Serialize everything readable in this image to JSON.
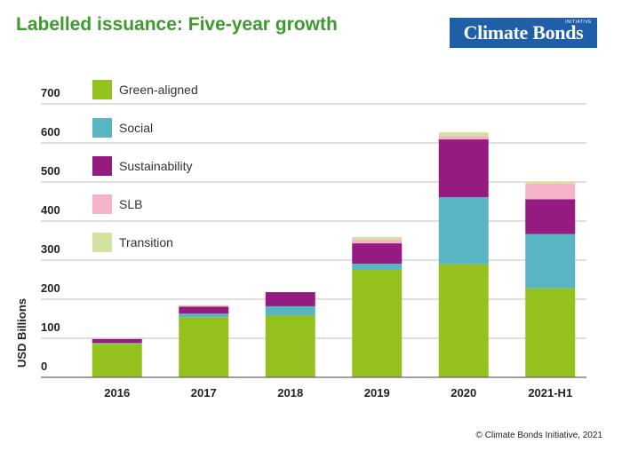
{
  "header": {
    "title": "Labelled issuance: Five-year growth",
    "logo_text": "Climate Bonds",
    "logo_subtext": "INITIATIVE"
  },
  "footer": {
    "copyright": "© Climate Bonds Initiative, 2021"
  },
  "colors": {
    "title": "#3d9a2e",
    "logo_bg": "#1f5fa8",
    "gridline": "#bfbfbf"
  },
  "chart_data": {
    "type": "bar",
    "stacked": true,
    "categories": [
      "2016",
      "2017",
      "2018",
      "2019",
      "2020",
      "2021-H1"
    ],
    "series": [
      {
        "name": "Green-aligned",
        "color": "#95c11f",
        "values": [
          86,
          154,
          158,
          275,
          290,
          228
        ]
      },
      {
        "name": "Social",
        "color": "#5ab5c3",
        "values": [
          2,
          9,
          24,
          16,
          171,
          139
        ]
      },
      {
        "name": "Sustainability",
        "color": "#951b81",
        "values": [
          10,
          18,
          36,
          52,
          148,
          89
        ]
      },
      {
        "name": "SLB",
        "color": "#f5b3c8",
        "values": [
          0,
          2,
          0,
          10,
          8,
          40
        ]
      },
      {
        "name": "Transition",
        "color": "#d2e39f",
        "values": [
          0,
          2,
          0,
          6,
          10,
          6
        ]
      }
    ],
    "ylabel": "USD Billions",
    "ylim": [
      0,
      700
    ],
    "yticks": [
      0,
      100,
      200,
      300,
      400,
      500,
      600,
      700
    ],
    "grid": true,
    "legend_position": "top-left"
  }
}
